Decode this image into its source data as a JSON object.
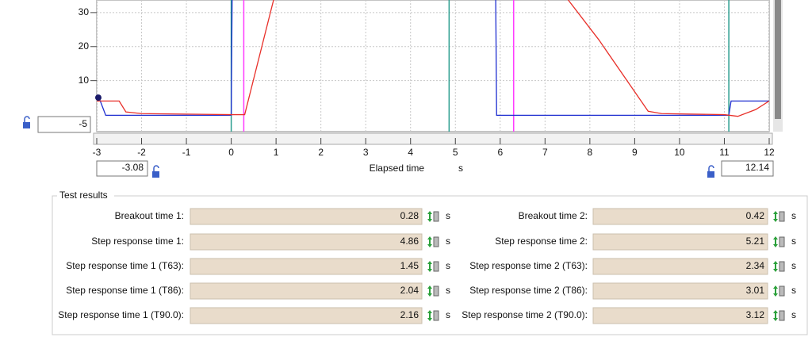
{
  "chart_data": {
    "type": "line",
    "x_label": "Elapsed time",
    "x_unit": "s",
    "xlim": [
      -3,
      12
    ],
    "ylim": [
      -5,
      33.7
    ],
    "xticks": [
      -3,
      -2,
      -1,
      0,
      1,
      2,
      3,
      4,
      5,
      6,
      7,
      8,
      9,
      10,
      11,
      12
    ],
    "yticks": [
      10,
      20,
      30
    ],
    "grid": true,
    "range_inputs": {
      "x_min": -3.08,
      "x_max": 12.14,
      "y_min": -5
    },
    "series": [
      {
        "color": "#1f2fd0",
        "x": [
          -3,
          -2.95,
          -2.8,
          0,
          0.02,
          5.9,
          5.92,
          11.1,
          11.15,
          12
        ],
        "values": [
          5,
          5,
          -0.2,
          -0.2,
          34,
          34,
          -0.2,
          -0.2,
          4,
          4
        ]
      },
      {
        "color": "#e8302a",
        "x": [
          -3,
          -2.5,
          -2.35,
          -2,
          0,
          0.3,
          0.95,
          7.5,
          8.2,
          9.3,
          9.6,
          11,
          11.3,
          11.7,
          12
        ],
        "values": [
          4,
          4,
          0.8,
          0.3,
          0,
          0,
          34,
          34,
          22,
          1,
          0.3,
          0,
          -0.5,
          1.5,
          4
        ]
      }
    ],
    "markers": [
      {
        "x": 0,
        "color": "#2a9d8f"
      },
      {
        "x": 0.28,
        "color": "#ff3cff"
      },
      {
        "x": 4.86,
        "color": "#2a9d8f"
      },
      {
        "x": 6.3,
        "color": "#ff3cff"
      },
      {
        "x": 11.1,
        "color": "#2a9d8f"
      }
    ]
  },
  "test_results": {
    "title": "Test results",
    "left": [
      {
        "label": "Breakout time 1:",
        "value": 0.28,
        "unit": "s"
      },
      {
        "label": "Step response time 1:",
        "value": 4.86,
        "unit": "s"
      },
      {
        "label": "Step response time 1 (T63):",
        "value": 1.45,
        "unit": "s"
      },
      {
        "label": "Step response time 1 (T86):",
        "value": 2.04,
        "unit": "s"
      },
      {
        "label": "Step response time 1 (T90.0):",
        "value": 2.16,
        "unit": "s"
      }
    ],
    "right": [
      {
        "label": "Breakout time 2:",
        "value": 0.42,
        "unit": "s"
      },
      {
        "label": "Step response time 2:",
        "value": 5.21,
        "unit": "s"
      },
      {
        "label": "Step response time 2 (T63):",
        "value": 2.34,
        "unit": "s"
      },
      {
        "label": "Step response time 2 (T86):",
        "value": 3.01,
        "unit": "s"
      },
      {
        "label": "Step response time 2 (T90.0):",
        "value": 3.12,
        "unit": "s"
      }
    ]
  }
}
